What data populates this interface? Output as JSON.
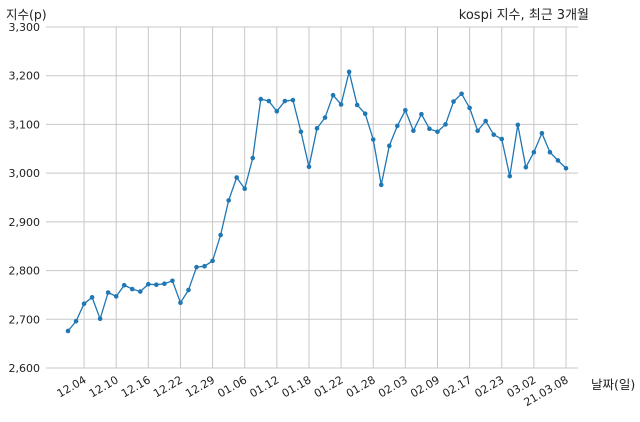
{
  "chart_data": {
    "type": "line",
    "title": "kospi 지수, 최근 3개월",
    "xlabel": "날짜(일)",
    "ylabel": "지수(p)",
    "ylim": [
      2600,
      3300
    ],
    "yticks": [
      2600,
      2700,
      2800,
      2900,
      3000,
      3100,
      3200,
      3300
    ],
    "ytick_labels": [
      "2,600",
      "2,700",
      "2,800",
      "2,900",
      "3,000",
      "3,100",
      "3,200",
      "3,300"
    ],
    "xtick_labels": [
      "12.04",
      "12.10",
      "12.16",
      "12.22",
      "12.29",
      "01.06",
      "01.12",
      "01.18",
      "01.22",
      "01.28",
      "02.03",
      "02.09",
      "02.17",
      "02.23",
      "03.02",
      "21.03.08"
    ],
    "xtick_index": [
      2,
      6,
      10,
      14,
      18,
      22,
      26,
      30,
      34,
      38,
      42,
      46,
      50,
      54,
      58,
      62
    ],
    "grid": true,
    "color": "#1f77b4",
    "values": [
      2676,
      2696,
      2732,
      2745,
      2701,
      2755,
      2747,
      2770,
      2762,
      2757,
      2772,
      2771,
      2773,
      2779,
      2734,
      2760,
      2807,
      2809,
      2820,
      2873,
      2944,
      2991,
      2968,
      3031,
      3152,
      3148,
      3127,
      3148,
      3150,
      3085,
      3013,
      3092,
      3114,
      3160,
      3141,
      3208,
      3140,
      3122,
      3069,
      2976,
      3056,
      3097,
      3129,
      3087,
      3121,
      3091,
      3085,
      3100,
      3147,
      3163,
      3134,
      3087,
      3107,
      3079,
      3070,
      2994,
      3099,
      3012,
      3043,
      3082,
      3043,
      3026,
      3010
    ]
  }
}
